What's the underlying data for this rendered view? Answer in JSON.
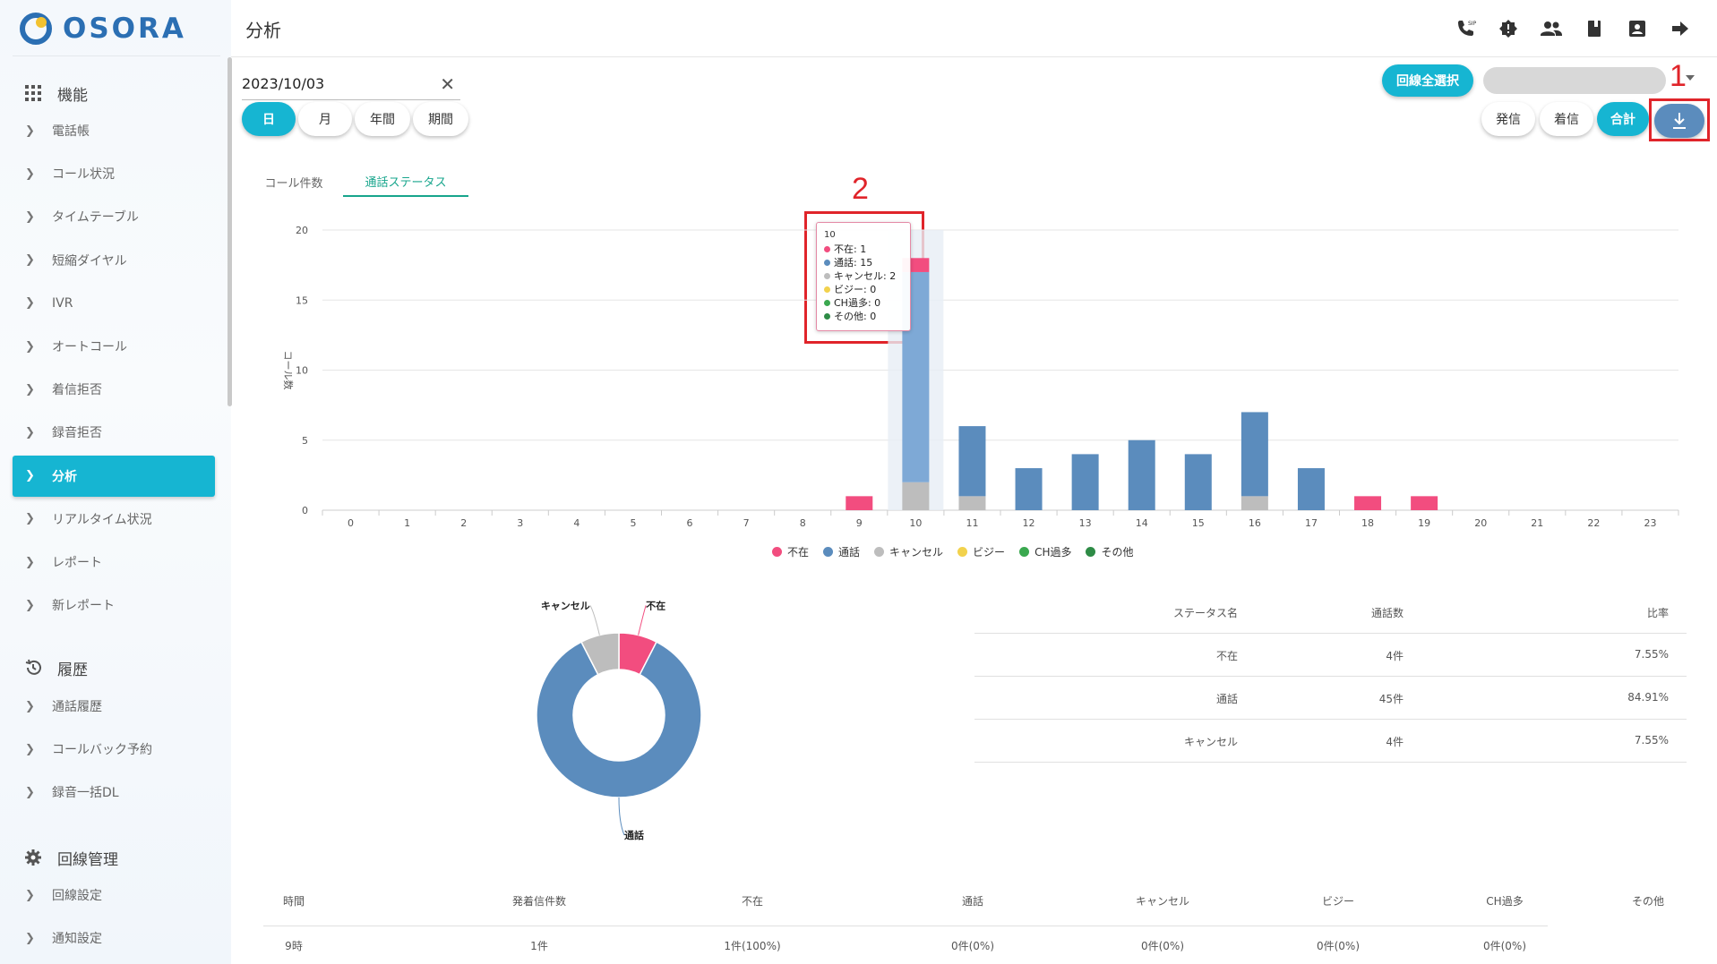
{
  "app": {
    "brand": "OSORA",
    "page_title": "分析"
  },
  "colors": {
    "accent": "#16b5d2",
    "absent": "#f24d7f",
    "talk": "#5b8cbd",
    "cancel": "#bdbdbd",
    "busy": "#f2d24d",
    "ch_over": "#3aa84f",
    "other": "#2e8b46",
    "download": "#5b8cbd",
    "annotation": "#e0242a"
  },
  "sidebar": {
    "sections": [
      {
        "title": "機能",
        "icon": "grid-icon"
      },
      {
        "title": "履歴",
        "icon": "history-icon"
      },
      {
        "title": "回線管理",
        "icon": "gear-icon"
      }
    ],
    "features": [
      "電話帳",
      "コール状況",
      "タイムテーブル",
      "短縮ダイヤル",
      "IVR",
      "オートコール",
      "着信拒否",
      "録音拒否",
      "分析",
      "リアルタイム状況",
      "レポート",
      "新レポート"
    ],
    "history": [
      "通話履歴",
      "コールバック予約",
      "録音一括DL"
    ],
    "line_mgmt": [
      "回線設定",
      "通知設定"
    ],
    "active_item": "分析"
  },
  "header_icons": [
    "sip-phone-icon",
    "alert-icon",
    "users-icon",
    "book-icon",
    "contact-icon",
    "logout-icon"
  ],
  "controls": {
    "date_value": "2023/10/03",
    "period_buttons": [
      "日",
      "月",
      "年間",
      "期間"
    ],
    "active_period": "日",
    "select_all_lines": "回線全選択",
    "direction_buttons": [
      "発信",
      "着信",
      "合計"
    ],
    "active_direction": "合計"
  },
  "tabs": [
    "コール件数",
    "通話ステータス"
  ],
  "active_tab": "通話ステータス",
  "annotations": {
    "label_1": "1",
    "label_2": "2"
  },
  "tooltip": {
    "title": "10",
    "lines": [
      "不在: 1",
      "通話: 15",
      "キャンセル: 2",
      "ビジー: 0",
      "CH過多: 0",
      "その他: 0"
    ]
  },
  "chart_data": [
    {
      "type": "bar",
      "stacked": true,
      "ylabel": "コール数",
      "ylim": [
        0,
        20
      ],
      "yticks": [
        0,
        5,
        10,
        15,
        20
      ],
      "categories": [
        "0",
        "1",
        "2",
        "3",
        "4",
        "5",
        "6",
        "7",
        "8",
        "9",
        "10",
        "11",
        "12",
        "13",
        "14",
        "15",
        "16",
        "17",
        "18",
        "19",
        "20",
        "21",
        "22",
        "23"
      ],
      "series": [
        {
          "name": "キャンセル",
          "color": "#bdbdbd",
          "values": [
            0,
            0,
            0,
            0,
            0,
            0,
            0,
            0,
            0,
            0,
            2,
            1,
            0,
            0,
            0,
            0,
            1,
            0,
            0,
            0,
            0,
            0,
            0,
            0
          ]
        },
        {
          "name": "通話",
          "color": "#5b8cbd",
          "values": [
            0,
            0,
            0,
            0,
            0,
            0,
            0,
            0,
            0,
            0,
            15,
            5,
            3,
            4,
            5,
            4,
            6,
            3,
            0,
            0,
            0,
            0,
            0,
            0
          ]
        },
        {
          "name": "不在",
          "color": "#f24d7f",
          "values": [
            0,
            0,
            0,
            0,
            0,
            0,
            0,
            0,
            0,
            1,
            1,
            0,
            0,
            0,
            0,
            0,
            0,
            0,
            1,
            1,
            0,
            0,
            0,
            0
          ]
        },
        {
          "name": "ビジー",
          "color": "#f2d24d",
          "values": [
            0,
            0,
            0,
            0,
            0,
            0,
            0,
            0,
            0,
            0,
            0,
            0,
            0,
            0,
            0,
            0,
            0,
            0,
            0,
            0,
            0,
            0,
            0,
            0
          ]
        },
        {
          "name": "CH過多",
          "color": "#3aa84f",
          "values": [
            0,
            0,
            0,
            0,
            0,
            0,
            0,
            0,
            0,
            0,
            0,
            0,
            0,
            0,
            0,
            0,
            0,
            0,
            0,
            0,
            0,
            0,
            0,
            0
          ]
        },
        {
          "name": "その他",
          "color": "#2e8b46",
          "values": [
            0,
            0,
            0,
            0,
            0,
            0,
            0,
            0,
            0,
            0,
            0,
            0,
            0,
            0,
            0,
            0,
            0,
            0,
            0,
            0,
            0,
            0,
            0,
            0
          ]
        }
      ],
      "highlighted_category": "10",
      "legend": "bottom"
    },
    {
      "type": "pie",
      "donut": true,
      "slices": [
        {
          "label": "不在",
          "value": 4,
          "color": "#f24d7f"
        },
        {
          "label": "通話",
          "value": 45,
          "color": "#5b8cbd"
        },
        {
          "label": "キャンセル",
          "value": 4,
          "color": "#bdbdbd"
        }
      ]
    }
  ],
  "status_table": {
    "headers": [
      "ステータス名",
      "通話数",
      "比率"
    ],
    "rows": [
      [
        "不在",
        "4件",
        "7.55%"
      ],
      [
        "通話",
        "45件",
        "84.91%"
      ],
      [
        "キャンセル",
        "4件",
        "7.55%"
      ]
    ]
  },
  "hourly_table": {
    "headers": [
      "時間",
      "発着信件数",
      "不在",
      "通話",
      "キャンセル",
      "ビジー",
      "CH過多",
      "その他"
    ],
    "rows": [
      [
        "9時",
        "1件",
        "1件(100%)",
        "0件(0%)",
        "0件(0%)",
        "0件(0%)",
        "0件(0%)",
        ""
      ]
    ]
  }
}
